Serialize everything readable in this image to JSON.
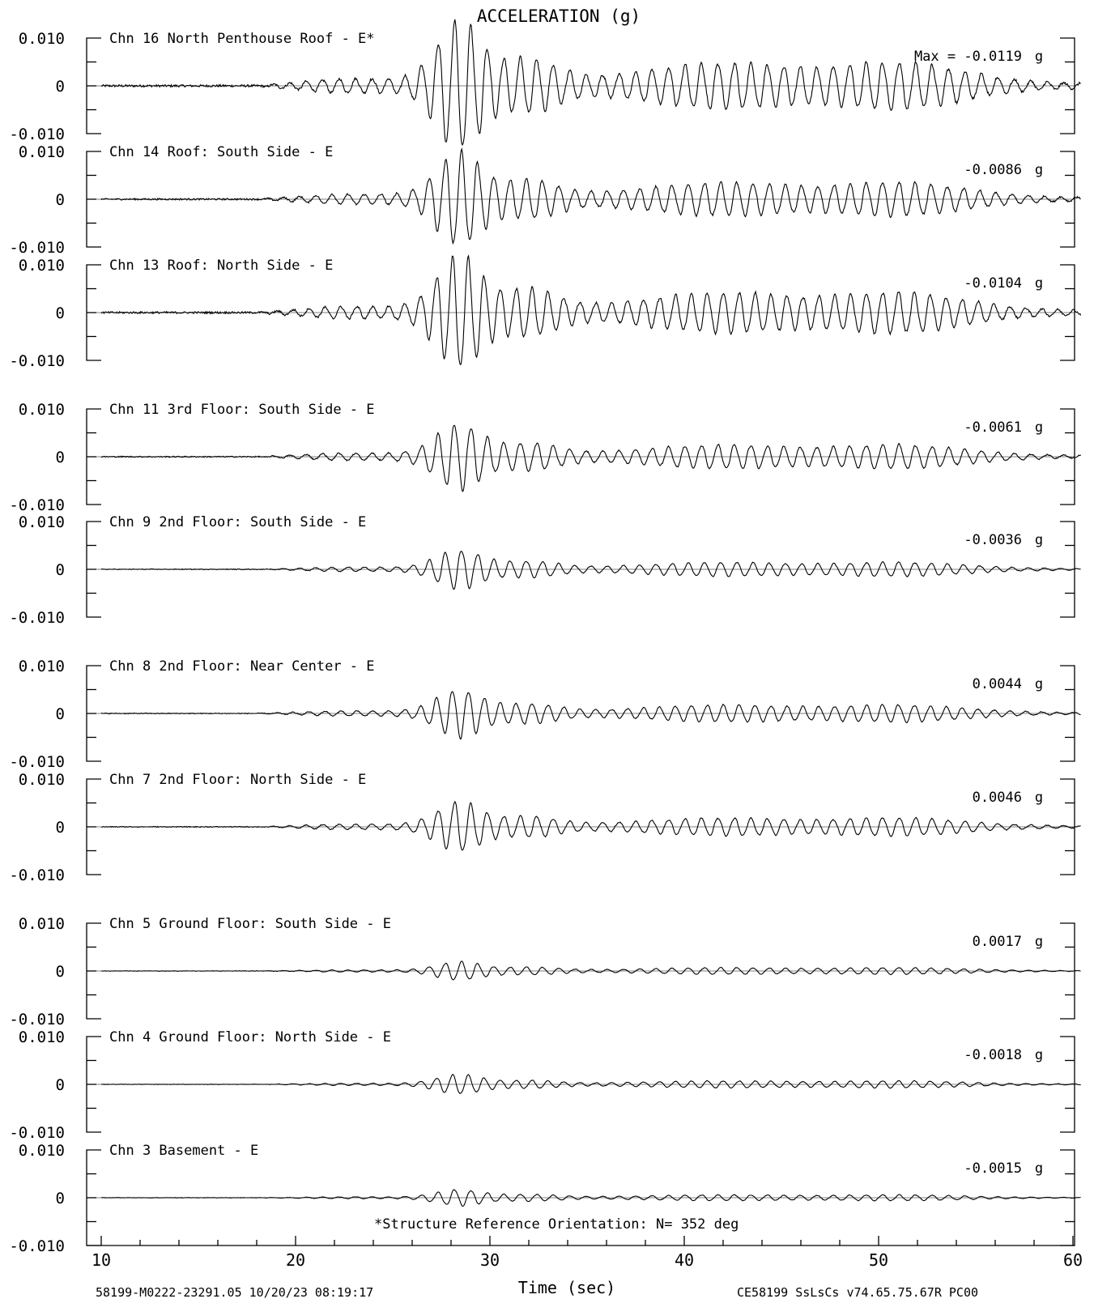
{
  "chart_data": {
    "type": "line",
    "title": "ACCELERATION (g)",
    "xlabel": "Time (sec)",
    "xlim": [
      10,
      60
    ],
    "xticks": [
      "10",
      "20",
      "30",
      "40",
      "50",
      "60"
    ],
    "ylim": [
      -0.01,
      0.01
    ],
    "yticks": [
      "0.010",
      "0",
      "-0.010"
    ],
    "max_prefix": "Max =",
    "unit": "g",
    "note": "*Structure Reference Orientation: N= 352 deg",
    "footer_left": "58199-M0222-23291.05 10/20/23 08:19:17",
    "footer_right": "CE58199  SsLsCs  v74.65.75.67R PC00",
    "channels": [
      {
        "label": "Chn 16  North Penthouse Roof - E*",
        "max": "-0.0119",
        "peak": 0.0119
      },
      {
        "label": "Chn 14  Roof: South Side - E",
        "max": "-0.0086",
        "peak": 0.0086
      },
      {
        "label": "Chn 13  Roof: North Side - E",
        "max": "-0.0104",
        "peak": 0.0104
      },
      {
        "label": "Chn 11  3rd Floor: South Side - E",
        "max": "-0.0061",
        "peak": 0.0061
      },
      {
        "label": "Chn 9  2nd Floor: South Side - E",
        "max": "-0.0036",
        "peak": 0.0036
      },
      {
        "label": "Chn 8  2nd Floor: Near Center - E",
        "max": "0.0044",
        "peak": 0.0044
      },
      {
        "label": "Chn 7  2nd Floor: North Side - E",
        "max": "0.0046",
        "peak": 0.0046
      },
      {
        "label": "Chn 5  Ground Floor: South Side - E",
        "max": "0.0017",
        "peak": 0.0017
      },
      {
        "label": "Chn 4  Ground Floor: North Side - E",
        "max": "-0.0018",
        "peak": 0.0018
      },
      {
        "label": "Chn 3  Basement - E",
        "max": "-0.0015",
        "peak": 0.0015
      }
    ]
  }
}
